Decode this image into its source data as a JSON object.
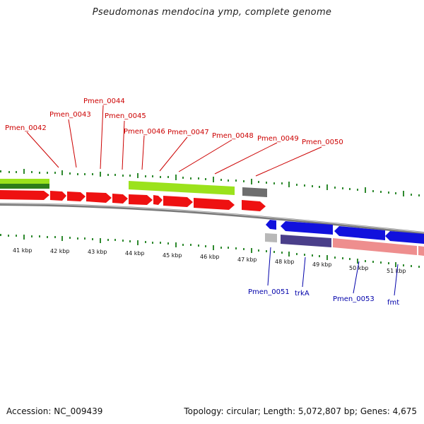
{
  "header": {
    "title": "Pseudomonas mendocina ymp, complete genome"
  },
  "footer": {
    "accession": "Accession: NC_009439",
    "topology": "Topology: circular; Length: 5,072,807 bp; Genes: 4,675"
  },
  "colors": {
    "forward_cds": "#ee1111",
    "reverse_cds": "#1111dd",
    "ortholog_green": "#9be21c",
    "dark_green": "#2e7d1a",
    "gray_block": "#6e6e6e",
    "purple_block": "#4a3f8a",
    "pink_block": "#ee8e8e",
    "tick_green": "#2f8a2f",
    "label_red": "#cc0000",
    "label_blue": "#0000aa",
    "backbone": "#8a8a8a"
  },
  "scale": {
    "unit": "kbp",
    "ticks": [
      {
        "label": "41 kbp"
      },
      {
        "label": "42 kbp"
      },
      {
        "label": "43 kbp"
      },
      {
        "label": "44 kbp"
      },
      {
        "label": "45 kbp"
      },
      {
        "label": "46 kbp"
      },
      {
        "label": "47 kbp"
      },
      {
        "label": "48 kbp"
      },
      {
        "label": "49 kbp"
      },
      {
        "label": "50 kbp"
      },
      {
        "label": "51 kbp"
      }
    ]
  },
  "genes_forward": [
    {
      "label": "Pmen_0042"
    },
    {
      "label": "Pmen_0043"
    },
    {
      "label": "Pmen_0044"
    },
    {
      "label": "Pmen_0045"
    },
    {
      "label": "Pmen_0046"
    },
    {
      "label": "Pmen_0047"
    },
    {
      "label": "Pmen_0048"
    },
    {
      "label": "Pmen_0049"
    },
    {
      "label": "Pmen_0050"
    }
  ],
  "genes_reverse": [
    {
      "label": "Pmen_0051"
    },
    {
      "label": "trkA"
    },
    {
      "label": "Pmen_0053"
    },
    {
      "label": "fmt"
    }
  ]
}
